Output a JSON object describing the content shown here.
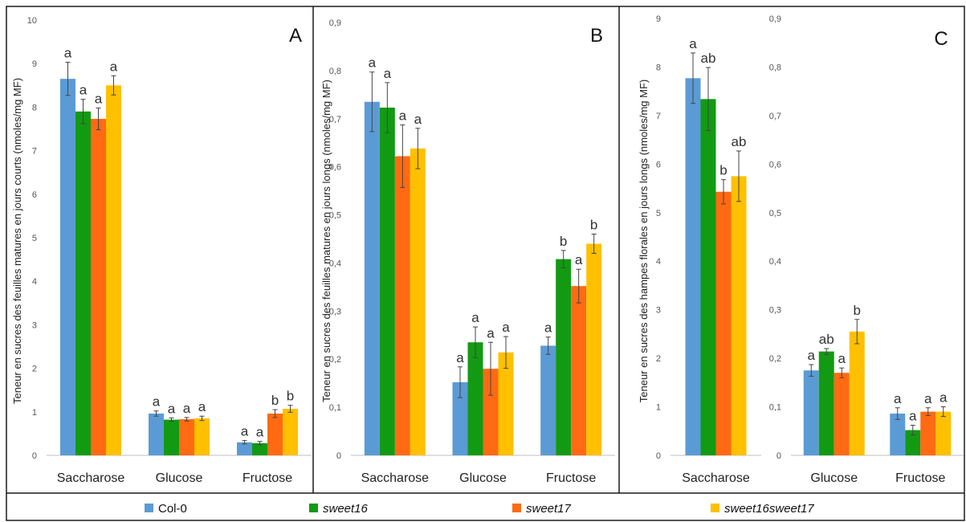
{
  "legend": [
    {
      "name": "Col-0",
      "color": "#5b9bd5",
      "italic": false
    },
    {
      "name": "sweet16",
      "color": "#139a13",
      "italic": true
    },
    {
      "name": "sweet17",
      "color": "#ff6a13",
      "italic": true
    },
    {
      "name": "sweet16sweet17",
      "color": "#ffc000",
      "italic": true
    }
  ],
  "chart_data": [
    {
      "type": "bar",
      "panel": "A",
      "ylabel": "Teneur en sucres des feuilles matures en jours courts (nmoles/mg MF)",
      "ylim": [
        0,
        10
      ],
      "ticks": [
        "0",
        "1",
        "2",
        "3",
        "4",
        "5",
        "6",
        "7",
        "8",
        "9",
        "10"
      ],
      "categories": [
        "Saccharose",
        "Glucose",
        "Fructose"
      ],
      "series": [
        {
          "name": "Col-0",
          "values": [
            8.65,
            0.96,
            0.3
          ],
          "errors": [
            0.38,
            0.06,
            0.04
          ],
          "letters": [
            "a",
            "a",
            "a"
          ]
        },
        {
          "name": "sweet16",
          "values": [
            7.9,
            0.82,
            0.28
          ],
          "errors": [
            0.28,
            0.04,
            0.04
          ],
          "letters": [
            "a",
            "a",
            "a"
          ]
        },
        {
          "name": "sweet17",
          "values": [
            7.73,
            0.83,
            0.96
          ],
          "errors": [
            0.25,
            0.04,
            0.09
          ],
          "letters": [
            "a",
            "a",
            "b"
          ]
        },
        {
          "name": "sweet16sweet17",
          "values": [
            8.5,
            0.85,
            1.07
          ],
          "errors": [
            0.22,
            0.05,
            0.08
          ],
          "letters": [
            "a",
            "a",
            "b"
          ]
        }
      ]
    },
    {
      "type": "bar",
      "panel": "B",
      "ylabel": "Teneur en sucres  des feuilles matures en jours longs (nmoles/mg MF)",
      "ylim": [
        0,
        0.9
      ],
      "ticks": [
        "0",
        "0,1",
        "0,2",
        "0,3",
        "0,4",
        "0,5",
        "0,6",
        "0,7",
        "0,8",
        "0,9"
      ],
      "categories": [
        "Saccharose",
        "Glucose",
        "Fructose"
      ],
      "series": [
        {
          "name": "Col-0",
          "values": [
            0.735,
            0.152,
            0.228
          ],
          "errors": [
            0.062,
            0.032,
            0.018
          ],
          "letters": [
            "a",
            "a",
            "a"
          ]
        },
        {
          "name": "sweet16",
          "values": [
            0.723,
            0.235,
            0.408
          ],
          "errors": [
            0.052,
            0.032,
            0.018
          ],
          "letters": [
            "a",
            "a",
            "b"
          ]
        },
        {
          "name": "sweet17",
          "values": [
            0.622,
            0.18,
            0.352
          ],
          "errors": [
            0.065,
            0.055,
            0.035
          ],
          "letters": [
            "a",
            "a",
            "a"
          ]
        },
        {
          "name": "sweet16sweet17",
          "values": [
            0.638,
            0.214,
            0.44
          ],
          "errors": [
            0.042,
            0.033,
            0.02
          ],
          "letters": [
            "a",
            "a",
            "b"
          ]
        }
      ]
    },
    {
      "type": "bar",
      "panel": "C",
      "ylabel": "Teneur en sucres des hampes florales en jours longs (nmoles/mg MF)",
      "ylim": [
        0,
        9
      ],
      "ticks": [
        "0",
        "1",
        "2",
        "3",
        "4",
        "5",
        "6",
        "7",
        "8",
        "9"
      ],
      "categories": [
        "Saccharose"
      ],
      "series": [
        {
          "name": "Col-0",
          "values": [
            7.77
          ],
          "errors": [
            0.52
          ],
          "letters": [
            "a"
          ]
        },
        {
          "name": "sweet16",
          "values": [
            7.34
          ],
          "errors": [
            0.65
          ],
          "letters": [
            "ab"
          ]
        },
        {
          "name": "sweet17",
          "values": [
            5.43
          ],
          "errors": [
            0.25
          ],
          "letters": [
            "b"
          ]
        },
        {
          "name": "sweet16sweet17",
          "values": [
            5.75
          ],
          "errors": [
            0.52
          ],
          "letters": [
            "ab"
          ]
        }
      ]
    },
    {
      "type": "bar",
      "panel": "",
      "ylabel": "",
      "ylim": [
        0,
        0.9
      ],
      "ticks": [
        "0",
        "0,1",
        "0,2",
        "0,3",
        "0,4",
        "0,5",
        "0,6",
        "0,7",
        "0,8",
        "0,9"
      ],
      "categories": [
        "Glucose",
        "Fructose"
      ],
      "series": [
        {
          "name": "Col-0",
          "values": [
            0.175,
            0.086
          ],
          "errors": [
            0.012,
            0.012
          ],
          "letters": [
            "a",
            "a"
          ]
        },
        {
          "name": "sweet16",
          "values": [
            0.214,
            0.052
          ],
          "errors": [
            0.006,
            0.01
          ],
          "letters": [
            "ab",
            "a"
          ]
        },
        {
          "name": "sweet17",
          "values": [
            0.17,
            0.09
          ],
          "errors": [
            0.01,
            0.008
          ],
          "letters": [
            "a",
            "a"
          ]
        },
        {
          "name": "sweet16sweet17",
          "values": [
            0.255,
            0.09
          ],
          "errors": [
            0.025,
            0.01
          ],
          "letters": [
            "b",
            "a"
          ]
        }
      ]
    }
  ]
}
